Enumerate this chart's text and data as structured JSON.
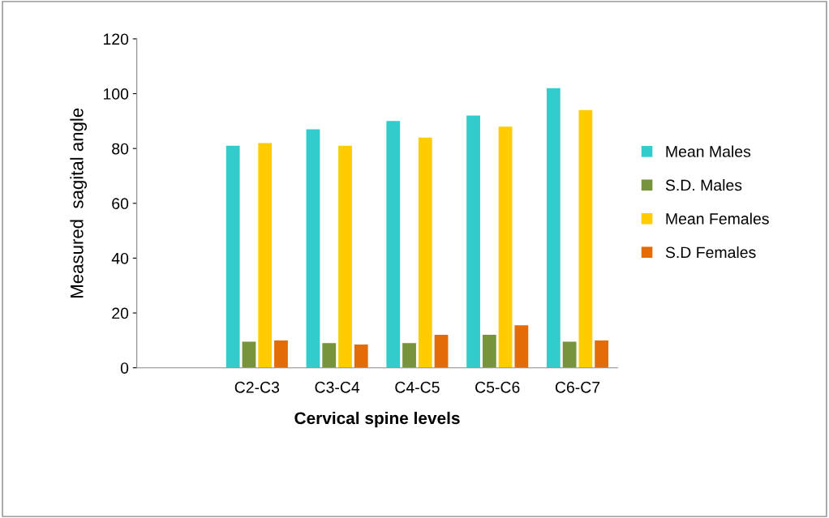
{
  "chart_data": {
    "type": "bar",
    "xlabel": "Cervical spine levels",
    "ylabel": "Measured  sagital angle",
    "categories": [
      null,
      "C2-C3",
      "C3-C4",
      "C4-C5",
      "C5-C6",
      "C6-C7"
    ],
    "series": [
      {
        "name": "Mean Males",
        "color": "#33cccc",
        "values": [
          null,
          81,
          87,
          90,
          92,
          102
        ]
      },
      {
        "name": "S.D. Males",
        "color": "#77933c",
        "values": [
          null,
          9.5,
          9,
          9,
          12,
          9.5
        ]
      },
      {
        "name": "Mean Females",
        "color": "#ffcc00",
        "values": [
          null,
          82,
          81,
          84,
          88,
          94
        ]
      },
      {
        "name": "S.D Females",
        "color": "#e36c09",
        "values": [
          null,
          10,
          8.5,
          12,
          15.5,
          10
        ]
      }
    ],
    "ylim": [
      0,
      120
    ],
    "yticks": [
      0,
      20,
      40,
      60,
      80,
      100,
      120
    ],
    "grid": false,
    "legend": "right"
  }
}
